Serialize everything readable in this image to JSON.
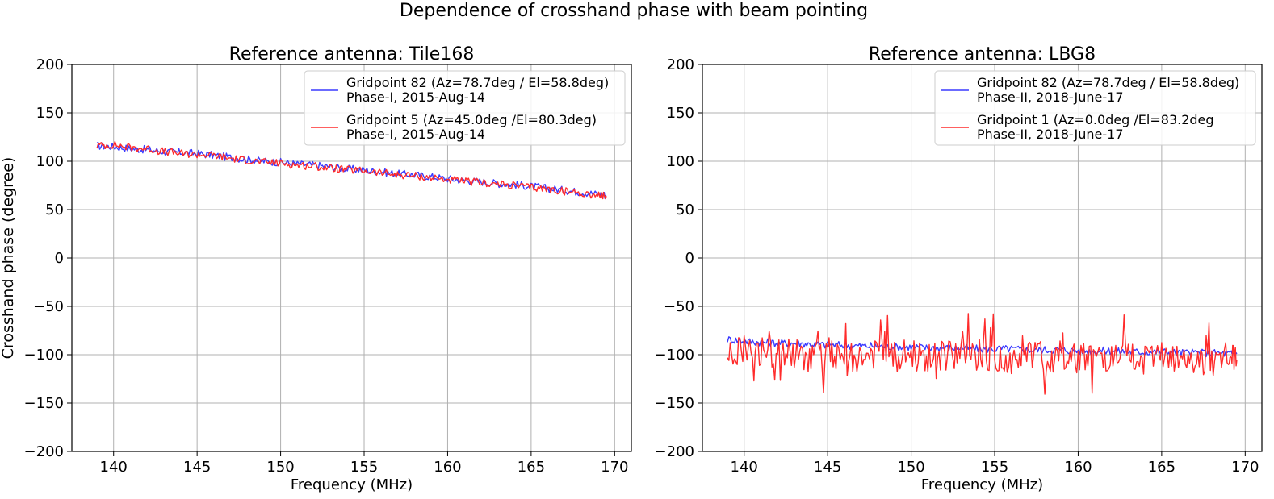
{
  "suptitle": "Dependence of crosshand phase with beam pointing",
  "shared_ylabel": "Crosshand phase (degree)",
  "colors": {
    "blue": "#3a3aff",
    "red": "#ff2b2b",
    "grid": "#b0b0b0"
  },
  "chart_data": [
    {
      "type": "line",
      "title": "Reference antenna: Tile168",
      "xlabel": "Frequency (MHz)",
      "ylabel": "Crosshand phase (degree)",
      "xlim": [
        137.5,
        171
      ],
      "ylim": [
        -200,
        200
      ],
      "xticks": [
        140,
        145,
        150,
        155,
        160,
        165,
        170
      ],
      "yticks": [
        200,
        150,
        100,
        50,
        0,
        -50,
        -100,
        -150,
        -200
      ],
      "ytick_labels": [
        "200",
        "150",
        "100",
        "50",
        "0",
        "−50",
        "−100",
        "−150",
        "−200"
      ],
      "grid": true,
      "legend_position": "upper right",
      "series": [
        {
          "name": "Gridpoint 82 (Az=78.7deg / El=58.8deg)",
          "name_line2": " Phase-I, 2015-Aug-14",
          "color": "blue",
          "x": [
            139.0,
            140.0,
            141.0,
            142.0,
            143.0,
            144.0,
            145.0,
            146.0,
            147.0,
            148.0,
            149.0,
            150.0,
            151.0,
            152.0,
            153.0,
            154.0,
            155.0,
            156.0,
            157.0,
            158.0,
            159.0,
            160.0,
            161.0,
            162.0,
            163.0,
            164.0,
            165.0,
            166.0,
            167.0,
            168.0,
            169.0,
            169.5
          ],
          "y": [
            116,
            115,
            113,
            112,
            110,
            109,
            108,
            106,
            104,
            102,
            100,
            99,
            97,
            96,
            94,
            92,
            91,
            89,
            87,
            86,
            84,
            82,
            80,
            79,
            77,
            76,
            74,
            72,
            70,
            68,
            66,
            65
          ]
        },
        {
          "name": "Gridpoint 5 (Az=45.0deg /El=80.3deg)",
          "name_line2": " Phase-I, 2015-Aug-14",
          "color": "red",
          "x": [
            139.0,
            140.0,
            141.0,
            142.0,
            143.0,
            144.0,
            145.0,
            146.0,
            147.0,
            148.0,
            149.0,
            150.0,
            151.0,
            152.0,
            153.0,
            154.0,
            155.0,
            156.0,
            157.0,
            158.0,
            159.0,
            160.0,
            161.0,
            162.0,
            163.0,
            164.0,
            165.0,
            166.0,
            167.0,
            168.0,
            169.0,
            169.5
          ],
          "y": [
            116,
            117,
            114,
            113,
            110,
            108,
            107,
            106,
            103,
            101,
            99,
            98,
            96,
            95,
            93,
            91,
            90,
            88,
            86,
            85,
            83,
            81,
            79,
            78,
            76,
            75,
            73,
            71,
            69,
            67,
            65,
            64
          ]
        }
      ]
    },
    {
      "type": "line",
      "title": "Reference antenna: LBG8",
      "xlabel": "Frequency (MHz)",
      "ylabel": "",
      "xlim": [
        137.5,
        171
      ],
      "ylim": [
        -200,
        200
      ],
      "xticks": [
        140,
        145,
        150,
        155,
        160,
        165,
        170
      ],
      "yticks": [
        200,
        150,
        100,
        50,
        0,
        -50,
        -100,
        -150,
        -200
      ],
      "ytick_labels": [
        "200",
        "150",
        "100",
        "50",
        "0",
        "−50",
        "−100",
        "−150",
        "−200"
      ],
      "grid": true,
      "legend_position": "upper right",
      "series": [
        {
          "name": "Gridpoint 82 (Az=78.7deg / El=58.8deg)",
          "name_line2": " Phase-II, 2018-June-17",
          "color": "blue",
          "x": [
            139.0,
            140.0,
            141.0,
            142.0,
            143.0,
            144.0,
            145.0,
            146.0,
            147.0,
            148.0,
            149.0,
            150.0,
            151.0,
            152.0,
            153.0,
            154.0,
            155.0,
            156.0,
            157.0,
            158.0,
            159.0,
            160.0,
            161.0,
            162.0,
            163.0,
            164.0,
            165.0,
            166.0,
            167.0,
            168.0,
            169.0,
            169.5
          ],
          "y": [
            -84,
            -86,
            -87,
            -88,
            -88,
            -89,
            -90,
            -90,
            -91,
            -91,
            -92,
            -92,
            -93,
            -93,
            -93,
            -94,
            -94,
            -94,
            -95,
            -95,
            -95,
            -96,
            -96,
            -96,
            -97,
            -97,
            -97,
            -98,
            -98,
            -98,
            -99,
            -99
          ]
        },
        {
          "name": "Gridpoint 1 (Az=0.0deg /El=83.2deg",
          "name_line2": " Phase-II, 2018-June-17",
          "color": "red",
          "x": [
            139.0,
            140.0,
            141.0,
            142.0,
            143.0,
            144.0,
            145.0,
            146.0,
            147.0,
            148.0,
            149.0,
            150.0,
            151.0,
            152.0,
            153.0,
            154.0,
            155.0,
            156.0,
            157.0,
            158.0,
            159.0,
            160.0,
            161.0,
            162.0,
            163.0,
            164.0,
            165.0,
            166.0,
            167.0,
            168.0,
            169.0,
            169.5
          ],
          "y": [
            -100,
            -95,
            -102,
            -98,
            -100,
            -103,
            -98,
            -101,
            -104,
            -99,
            -102,
            -100,
            -105,
            -101,
            -103,
            -99,
            -102,
            -104,
            -100,
            -103,
            -101,
            -105,
            -100,
            -104,
            -102,
            -106,
            -103,
            -107,
            -104,
            -106,
            -103,
            -105
          ]
        }
      ]
    }
  ]
}
